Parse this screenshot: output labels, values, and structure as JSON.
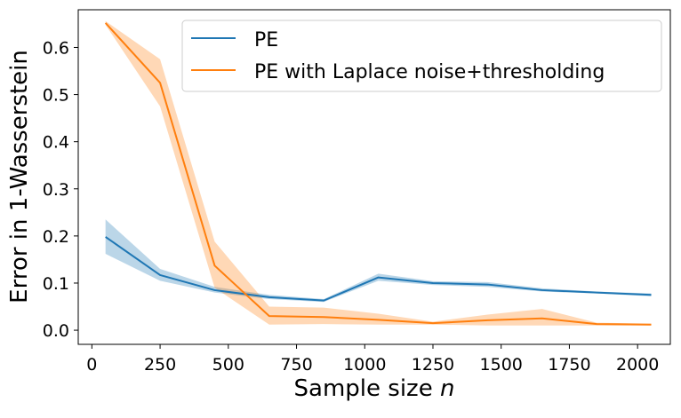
{
  "chart_data": {
    "type": "line",
    "title": "",
    "xlabel": "Sample size ",
    "xlabel_var": "n",
    "ylabel": "Error in 1-Wasserstein",
    "xlim": [
      -50,
      2120
    ],
    "ylim": [
      -0.03,
      0.68
    ],
    "x_ticks": [
      0,
      250,
      500,
      750,
      1000,
      1250,
      1500,
      1750,
      2000
    ],
    "x_tick_labels": [
      "0",
      "250",
      "500",
      "750",
      "1000",
      "1250",
      "1500",
      "1750",
      "2000"
    ],
    "y_ticks": [
      0.0,
      0.1,
      0.2,
      0.3,
      0.4,
      0.5,
      0.6
    ],
    "y_tick_labels": [
      "0.0",
      "0.1",
      "0.2",
      "0.3",
      "0.4",
      "0.5",
      "0.6"
    ],
    "x": [
      50,
      250,
      450,
      650,
      850,
      1050,
      1250,
      1450,
      1650,
      1850,
      2050
    ],
    "legend_position": "top-right",
    "series": [
      {
        "name": "PE",
        "color": "#1f77b4",
        "values": [
          0.198,
          0.117,
          0.085,
          0.07,
          0.063,
          0.112,
          0.1,
          0.097,
          0.085,
          0.08,
          0.075
        ],
        "lower": [
          0.162,
          0.105,
          0.08,
          0.066,
          0.06,
          0.105,
          0.096,
          0.092,
          0.082,
          0.078,
          0.072
        ],
        "upper": [
          0.235,
          0.13,
          0.092,
          0.075,
          0.066,
          0.12,
          0.104,
          0.102,
          0.089,
          0.082,
          0.078
        ]
      },
      {
        "name": "PE with Laplace noise+thresholding",
        "color": "#ff7f0e",
        "values": [
          0.652,
          0.525,
          0.137,
          0.03,
          0.028,
          0.022,
          0.015,
          0.021,
          0.025,
          0.013,
          0.012
        ],
        "lower": [
          0.648,
          0.475,
          0.09,
          0.012,
          0.013,
          0.012,
          0.012,
          0.01,
          0.01,
          0.01,
          0.01
        ],
        "upper": [
          0.656,
          0.575,
          0.188,
          0.05,
          0.048,
          0.035,
          0.018,
          0.033,
          0.045,
          0.016,
          0.014
        ]
      }
    ]
  }
}
